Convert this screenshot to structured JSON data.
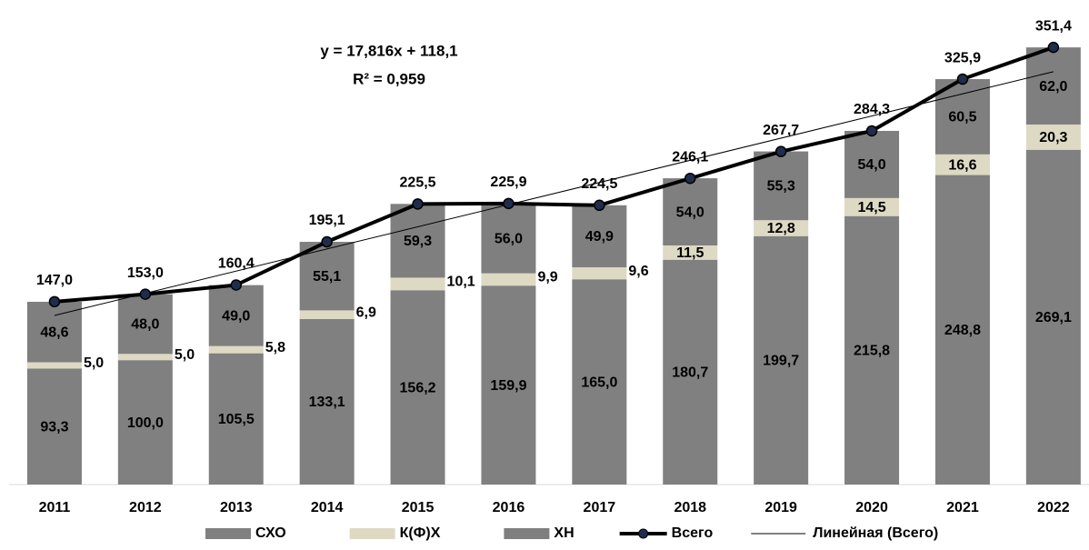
{
  "chart_data": {
    "type": "stacked-bar-line",
    "categories": [
      "2011",
      "2012",
      "2013",
      "2014",
      "2015",
      "2016",
      "2017",
      "2018",
      "2019",
      "2020",
      "2021",
      "2022"
    ],
    "series": [
      {
        "name": "СХО",
        "color": "#808080",
        "values": [
          93.3,
          100.0,
          105.5,
          133.1,
          156.2,
          159.9,
          165.0,
          180.7,
          199.7,
          215.8,
          248.8,
          269.1
        ],
        "value_labels": [
          "93,3",
          "100,0",
          "105,5",
          "133,1",
          "156,2",
          "159,9",
          "165,0",
          "180,7",
          "199,7",
          "215,8",
          "248,8",
          "269,1"
        ]
      },
      {
        "name": "К(Ф)Х",
        "color": "#ddd9c3",
        "values": [
          5.0,
          5.0,
          5.8,
          6.9,
          10.1,
          9.9,
          9.6,
          11.5,
          12.8,
          14.5,
          16.6,
          20.3
        ],
        "value_labels": [
          "5,0",
          "5,0",
          "5,8",
          "6,9",
          "10,1",
          "9,9",
          "9,6",
          "11,5",
          "12,8",
          "14,5",
          "16,6",
          "20,3"
        ]
      },
      {
        "name": "ХН",
        "color": "#7f7f7f",
        "values": [
          48.6,
          48.0,
          49.0,
          55.1,
          59.3,
          56.0,
          49.9,
          54.0,
          55.3,
          54.0,
          60.5,
          62.0
        ],
        "value_labels": [
          "48,6",
          "48,0",
          "49,0",
          "55,1",
          "59,3",
          "56,0",
          "49,9",
          "54,0",
          "55,3",
          "54,0",
          "60,5",
          "62,0"
        ]
      },
      {
        "name": "Всего",
        "type": "line",
        "color": "#000000",
        "marker_color": "#1f2d4d",
        "values": [
          147.0,
          153.0,
          160.4,
          195.1,
          225.5,
          225.9,
          224.5,
          246.1,
          267.7,
          284.3,
          325.9,
          351.4
        ],
        "value_labels": [
          "147,0",
          "153,0",
          "160,4",
          "195,1",
          "225,5",
          "225,9",
          "224,5",
          "246,1",
          "267,7",
          "284,3",
          "325,9",
          "351,4"
        ]
      }
    ],
    "trendline": {
      "name": "Линейная (Всего)",
      "slope": 17.816,
      "intercept": 118.1,
      "r2": 0.959,
      "equation": "y = 17,816x + 118,1",
      "r2_label": "R² = 0,959"
    },
    "ylim": [
      0,
      380
    ],
    "grid": false
  }
}
